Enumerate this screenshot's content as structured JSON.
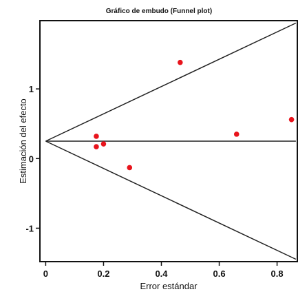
{
  "chart_data": {
    "type": "scatter",
    "title": "Gráfico de embudo (Funnel plot)",
    "xlabel": "Error estándar",
    "ylabel": "Estimación del efecto",
    "xlim": [
      -0.02,
      0.87
    ],
    "ylim": [
      -1.48,
      1.98
    ],
    "x_ticks": [
      0,
      0.2,
      0.4,
      0.6,
      0.8
    ],
    "x_tick_labels": [
      "0",
      "0.2",
      "0.4",
      "0.6",
      "0.8"
    ],
    "y_ticks": [
      -1,
      0,
      1
    ],
    "y_tick_labels": [
      "-1",
      "0",
      "1"
    ],
    "grid": false,
    "pooled_estimate": 0.25,
    "funnel_slope": 1.96,
    "points": [
      {
        "x": 0.175,
        "y": 0.32
      },
      {
        "x": 0.175,
        "y": 0.17
      },
      {
        "x": 0.2,
        "y": 0.21
      },
      {
        "x": 0.29,
        "y": -0.13
      },
      {
        "x": 0.465,
        "y": 1.38
      },
      {
        "x": 0.66,
        "y": 0.35
      },
      {
        "x": 0.85,
        "y": 0.56
      }
    ],
    "point_color": "#e8141c",
    "line_color": "#222222"
  }
}
